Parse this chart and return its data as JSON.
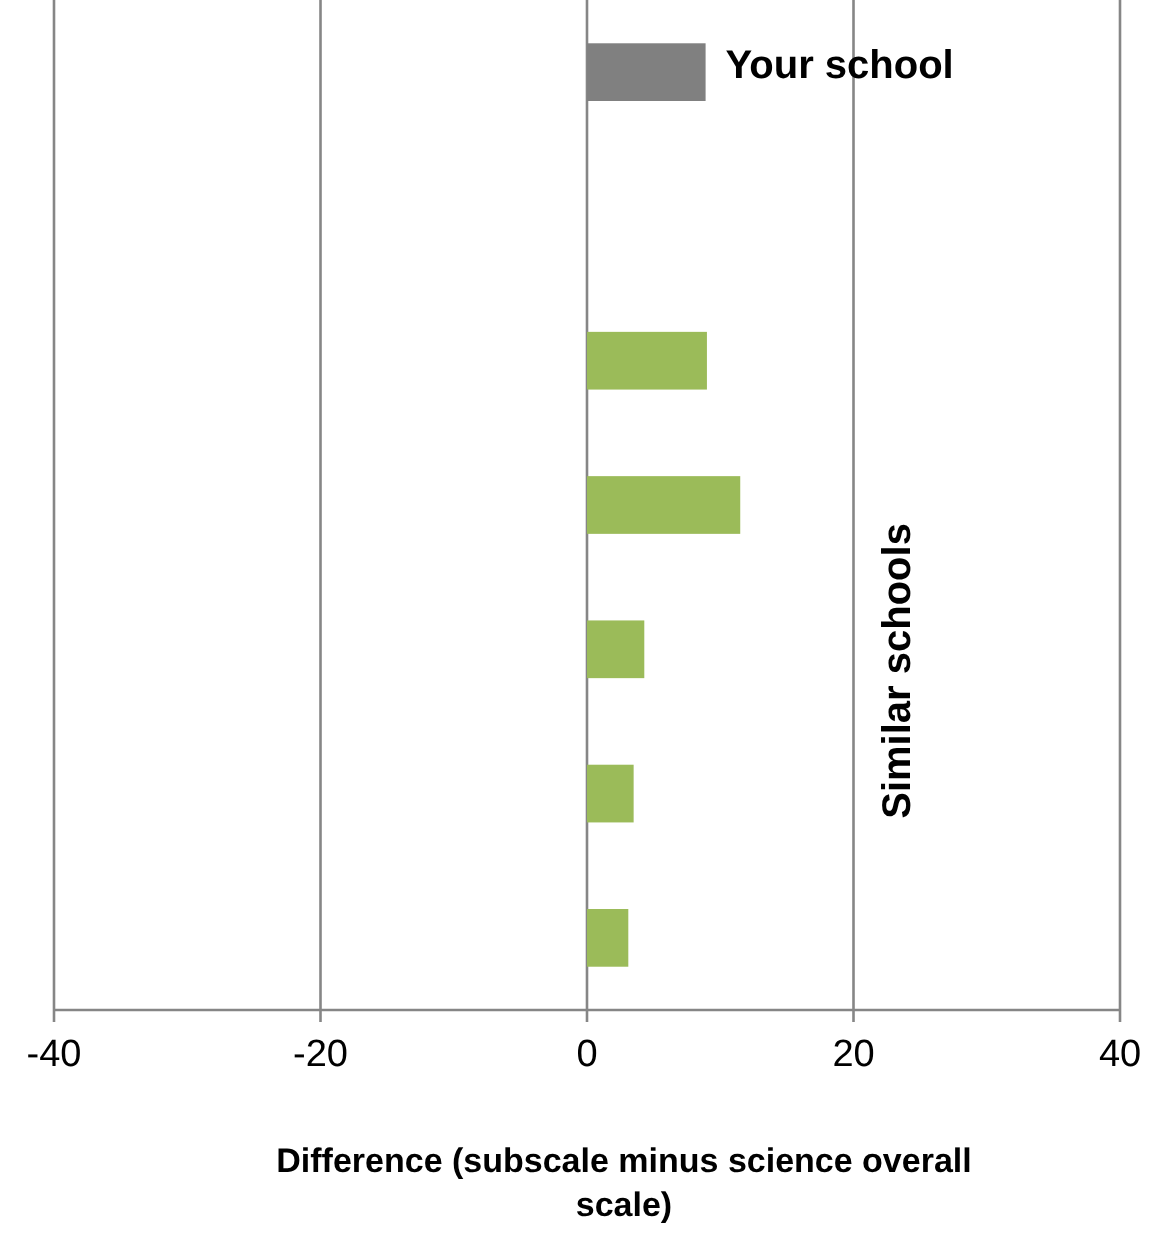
{
  "chart_data": {
    "type": "bar",
    "orientation": "horizontal",
    "categories": [
      null,
      null,
      null,
      null,
      null,
      null,
      null
    ],
    "values": [
      8.9,
      null,
      9,
      11.5,
      4.3,
      3.5,
      3.1
    ],
    "colors": [
      "#808080",
      null,
      "#9bbb59",
      "#9bbb59",
      "#9bbb59",
      "#9bbb59",
      "#9bbb59"
    ],
    "xlim": [
      -40,
      40
    ],
    "xticks": [
      -40,
      -20,
      0,
      20,
      40
    ],
    "grid": "x",
    "xlabel": "Difference (subscale minus science overall scale)",
    "annotations": [
      "Your school",
      "Similar schools"
    ]
  }
}
